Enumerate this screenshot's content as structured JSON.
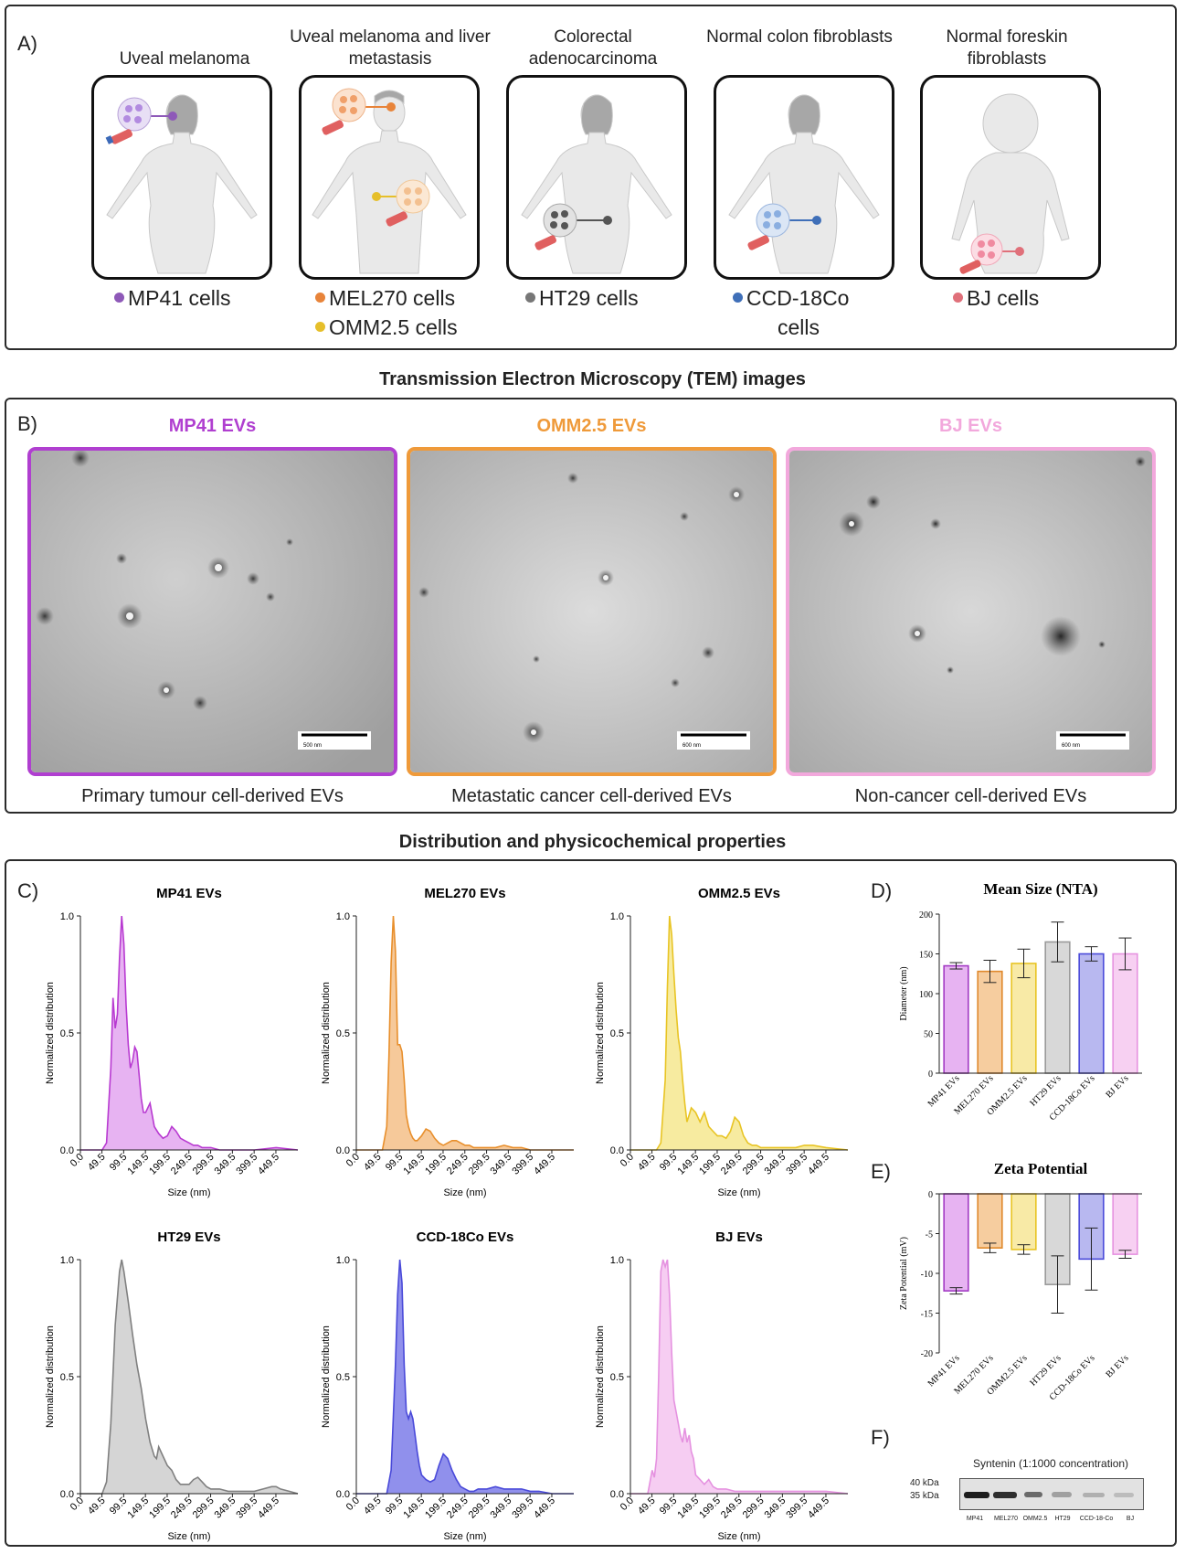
{
  "panel_a": {
    "letter": "A)",
    "groups": [
      {
        "title": "Uveal melanoma",
        "cells": [
          {
            "label": "MP41 cells",
            "color": "#8e59b8"
          }
        ]
      },
      {
        "title": "Uveal melanoma and liver metastasis",
        "cells": [
          {
            "label": "MEL270 cells",
            "color": "#e8843a"
          },
          {
            "label": "OMM2.5 cells",
            "color": "#e6bf2a"
          }
        ]
      },
      {
        "title": "Colorectal adenocarcinoma",
        "cells": [
          {
            "label": "HT29 cells",
            "color": "#777777"
          }
        ]
      },
      {
        "title": "Normal colon fibroblasts",
        "cells": [
          {
            "label": "CCD-18Co",
            "color": "#3f6fb8"
          },
          {
            "label": "cells",
            "color": ""
          }
        ]
      },
      {
        "title": "Normal foreskin fibroblasts",
        "cells": [
          {
            "label": "BJ cells",
            "color": "#e0707a"
          }
        ]
      }
    ]
  },
  "panel_b": {
    "heading": "Transmission Electron Microscopy (TEM) images",
    "letter": "B)",
    "images": [
      {
        "title": "MP41 EVs",
        "color": "#b03fd0",
        "caption": "Primary tumour cell-derived EVs",
        "scale_label": "500 nm"
      },
      {
        "title": "OMM2.5 EVs",
        "color": "#ef9a3a",
        "caption": "Metastatic cancer cell-derived EVs",
        "scale_label": "600 nm"
      },
      {
        "title": "BJ EVs",
        "color": "#f2a8dc",
        "caption": "Non-cancer cell-derived EVs",
        "scale_label": "600 nm"
      }
    ]
  },
  "panel_c_heading": "Distribution and physicochemical properties",
  "letters": {
    "c": "C)",
    "d": "D)",
    "e": "E)",
    "f": "F)"
  },
  "chart_data": [
    {
      "type": "area",
      "panel": "C",
      "title": "MP41 EVs",
      "color": "#b83ad1",
      "fill": "#e7b3f2",
      "xlabel": "Size (nm)",
      "ylabel": "Normalized distribution",
      "xlim": [
        0,
        500
      ],
      "ylim": [
        0,
        1.0
      ],
      "xticks": [
        "0.0",
        "49.5",
        "99.5",
        "149.5",
        "199.5",
        "249.5",
        "299.5",
        "349.5",
        "399.5",
        "449.5"
      ],
      "yticks": [
        "0.0",
        "0.5",
        "1.0"
      ],
      "x": [
        0,
        30,
        50,
        60,
        70,
        75,
        80,
        85,
        90,
        95,
        100,
        105,
        110,
        115,
        120,
        125,
        130,
        135,
        140,
        145,
        150,
        160,
        170,
        180,
        190,
        200,
        210,
        220,
        230,
        240,
        250,
        260,
        270,
        280,
        290,
        300,
        320,
        350,
        400,
        450,
        500
      ],
      "y": [
        0,
        0,
        0,
        0.03,
        0.35,
        0.65,
        0.52,
        0.58,
        0.82,
        1.0,
        0.88,
        0.62,
        0.45,
        0.35,
        0.38,
        0.44,
        0.42,
        0.32,
        0.22,
        0.16,
        0.16,
        0.2,
        0.1,
        0.07,
        0.05,
        0.06,
        0.1,
        0.08,
        0.05,
        0.04,
        0.03,
        0.02,
        0.02,
        0.01,
        0.01,
        0.01,
        0,
        0,
        0,
        0.01,
        0
      ]
    },
    {
      "type": "area",
      "panel": "C",
      "title": "MEL270 EVs",
      "color": "#e88f2c",
      "fill": "#f6c99a",
      "xlabel": "Size (nm)",
      "ylabel": "Normalized distribution",
      "xlim": [
        0,
        500
      ],
      "ylim": [
        0,
        1.0
      ],
      "xticks": [
        "0.0",
        "49.5",
        "99.5",
        "149.5",
        "199.5",
        "249.5",
        "299.5",
        "349.5",
        "399.5",
        "449.5"
      ],
      "yticks": [
        "0.0",
        "0.5",
        "1.0"
      ],
      "x": [
        0,
        60,
        70,
        75,
        80,
        85,
        90,
        95,
        100,
        105,
        110,
        115,
        120,
        125,
        130,
        135,
        140,
        150,
        160,
        170,
        180,
        190,
        200,
        210,
        220,
        230,
        240,
        250,
        260,
        270,
        280,
        290,
        300,
        320,
        340,
        360,
        380,
        400,
        450,
        500
      ],
      "y": [
        0,
        0,
        0.1,
        0.4,
        0.8,
        1.0,
        0.85,
        0.45,
        0.45,
        0.42,
        0.3,
        0.15,
        0.1,
        0.07,
        0.05,
        0.04,
        0.04,
        0.06,
        0.09,
        0.08,
        0.05,
        0.03,
        0.02,
        0.03,
        0.04,
        0.04,
        0.03,
        0.02,
        0.02,
        0.01,
        0.01,
        0.01,
        0.01,
        0.01,
        0.02,
        0.01,
        0.01,
        0,
        0,
        0
      ]
    },
    {
      "type": "area",
      "panel": "C",
      "title": "OMM2.5 EVs",
      "color": "#e8c424",
      "fill": "#f7eba0",
      "xlabel": "Size (nm)",
      "ylabel": "Normalized distribution",
      "xlim": [
        0,
        500
      ],
      "ylim": [
        0,
        1.0
      ],
      "xticks": [
        "0.0",
        "49.5",
        "99.5",
        "149.5",
        "199.5",
        "249.5",
        "299.5",
        "349.5",
        "399.5",
        "449.5"
      ],
      "yticks": [
        "0.0",
        "0.5",
        "1.0"
      ],
      "x": [
        0,
        60,
        70,
        80,
        85,
        90,
        95,
        100,
        105,
        110,
        115,
        120,
        125,
        130,
        135,
        140,
        150,
        160,
        170,
        180,
        190,
        200,
        210,
        220,
        230,
        240,
        250,
        260,
        270,
        280,
        290,
        300,
        320,
        350,
        380,
        400,
        420,
        450,
        500
      ],
      "y": [
        0,
        0,
        0.03,
        0.3,
        0.7,
        1.0,
        0.92,
        0.75,
        0.6,
        0.48,
        0.42,
        0.3,
        0.2,
        0.12,
        0.15,
        0.18,
        0.16,
        0.12,
        0.16,
        0.1,
        0.08,
        0.06,
        0.06,
        0.05,
        0.08,
        0.14,
        0.12,
        0.06,
        0.03,
        0.02,
        0.02,
        0.01,
        0.01,
        0.01,
        0.01,
        0.02,
        0.02,
        0.01,
        0
      ]
    },
    {
      "type": "area",
      "panel": "C",
      "title": "HT29 EVs",
      "color": "#808080",
      "fill": "#d5d5d5",
      "xlabel": "Size (nm)",
      "ylabel": "Normalized distribution",
      "xlim": [
        0,
        500
      ],
      "ylim": [
        0,
        1.0
      ],
      "xticks": [
        "0.0",
        "49.5",
        "99.5",
        "149.5",
        "199.5",
        "249.5",
        "299.5",
        "349.5",
        "399.5",
        "449.5"
      ],
      "yticks": [
        "0.0",
        "0.5",
        "1.0"
      ],
      "x": [
        0,
        40,
        50,
        60,
        70,
        80,
        90,
        95,
        100,
        110,
        120,
        130,
        140,
        150,
        160,
        170,
        175,
        180,
        190,
        200,
        210,
        220,
        230,
        240,
        250,
        260,
        270,
        280,
        290,
        300,
        320,
        340,
        360,
        380,
        400,
        420,
        440,
        450,
        460,
        480,
        500
      ],
      "y": [
        0,
        0,
        0,
        0.05,
        0.3,
        0.72,
        0.95,
        1.0,
        0.95,
        0.82,
        0.68,
        0.55,
        0.45,
        0.32,
        0.22,
        0.16,
        0.15,
        0.2,
        0.16,
        0.12,
        0.1,
        0.06,
        0.04,
        0.04,
        0.04,
        0.06,
        0.07,
        0.05,
        0.03,
        0.02,
        0.02,
        0.01,
        0.01,
        0.01,
        0.01,
        0.02,
        0.03,
        0.03,
        0.02,
        0.01,
        0
      ]
    },
    {
      "type": "area",
      "panel": "C",
      "title": "CCD-18Co EVs",
      "color": "#4a4ad9",
      "fill": "#9090ec",
      "xlabel": "Size (nm)",
      "ylabel": "Normalized distribution",
      "xlim": [
        0,
        500
      ],
      "ylim": [
        0,
        1.0
      ],
      "xticks": [
        "0.0",
        "49.5",
        "99.5",
        "149.5",
        "199.5",
        "249.5",
        "299.5",
        "349.5",
        "399.5",
        "449.5"
      ],
      "yticks": [
        "0.0",
        "0.5",
        "1.0"
      ],
      "x": [
        0,
        70,
        80,
        90,
        95,
        100,
        105,
        110,
        115,
        120,
        125,
        130,
        135,
        140,
        145,
        150,
        160,
        170,
        180,
        190,
        200,
        210,
        220,
        230,
        240,
        250,
        260,
        270,
        280,
        290,
        300,
        320,
        340,
        360,
        380,
        400,
        420,
        450,
        500
      ],
      "y": [
        0,
        0,
        0.1,
        0.55,
        0.85,
        1.0,
        0.9,
        0.55,
        0.35,
        0.32,
        0.35,
        0.32,
        0.25,
        0.18,
        0.12,
        0.08,
        0.06,
        0.05,
        0.06,
        0.12,
        0.17,
        0.15,
        0.1,
        0.06,
        0.03,
        0.02,
        0.01,
        0.01,
        0.02,
        0.02,
        0.02,
        0.03,
        0.02,
        0.02,
        0.02,
        0.01,
        0.01,
        0,
        0
      ]
    },
    {
      "type": "area",
      "panel": "C",
      "title": "BJ EVs",
      "color": "#e592e0",
      "fill": "#f6cdf2",
      "xlabel": "Size (nm)",
      "ylabel": "Normalized distribution",
      "xlim": [
        0,
        500
      ],
      "ylim": [
        0,
        1.0
      ],
      "xticks": [
        "0.0",
        "49.5",
        "99.5",
        "149.5",
        "199.5",
        "249.5",
        "299.5",
        "349.5",
        "399.5",
        "449.5"
      ],
      "yticks": [
        "0.0",
        "0.5",
        "1.0"
      ],
      "x": [
        0,
        40,
        45,
        50,
        55,
        60,
        65,
        70,
        75,
        80,
        85,
        90,
        95,
        100,
        105,
        110,
        115,
        120,
        125,
        130,
        135,
        140,
        145,
        150,
        160,
        170,
        180,
        190,
        200,
        220,
        240,
        260,
        300,
        350,
        400,
        450,
        500
      ],
      "y": [
        0,
        0,
        0.05,
        0.1,
        0.07,
        0.15,
        0.5,
        0.95,
        1.0,
        0.97,
        1.0,
        0.85,
        0.6,
        0.4,
        0.35,
        0.3,
        0.25,
        0.22,
        0.28,
        0.22,
        0.25,
        0.18,
        0.15,
        0.08,
        0.06,
        0.04,
        0.06,
        0.03,
        0.02,
        0.02,
        0.01,
        0.01,
        0.01,
        0.01,
        0.01,
        0.01,
        0
      ]
    },
    {
      "type": "bar",
      "panel": "D",
      "title": "Mean Size (NTA)",
      "ylabel": "Diameter (nm)",
      "ylim": [
        0,
        200
      ],
      "yticks": [
        "0",
        "50",
        "100",
        "150",
        "200"
      ],
      "categories": [
        "MP41 EVs",
        "MEL270 EVs",
        "OMM2.5 EVs",
        "HT29 EVs",
        "CCD-18Co EVs",
        "BJ EVs"
      ],
      "values": [
        135,
        128,
        138,
        165,
        150,
        150
      ],
      "errors": [
        4,
        14,
        18,
        25,
        9,
        20
      ],
      "colors": [
        "#a33bc4",
        "#e0892c",
        "#e8c424",
        "#9a9a9a",
        "#4a4ad9",
        "#e592e0"
      ],
      "fills": [
        "#e7b3f2",
        "#f6cd9f",
        "#f8eaa6",
        "#d8d8d8",
        "#b8b8f0",
        "#f7d0f2"
      ]
    },
    {
      "type": "bar",
      "panel": "E",
      "title": "Zeta Potential",
      "ylabel": "Zeta Potential (mV)",
      "ylim": [
        -20,
        0
      ],
      "yticks": [
        "0",
        "-5",
        "-10",
        "-15",
        "-20"
      ],
      "categories": [
        "MP41 EVs",
        "MEL270 EVs",
        "OMM2.5 EVs",
        "HT29 EVs",
        "CCD-18Co EVs",
        "BJ EVs"
      ],
      "values": [
        -12.2,
        -6.8,
        -7.0,
        -11.4,
        -8.2,
        -7.6
      ],
      "errors": [
        0.4,
        0.6,
        0.6,
        3.6,
        3.9,
        0.5
      ],
      "colors": [
        "#a33bc4",
        "#e0892c",
        "#e8c424",
        "#9a9a9a",
        "#4a4ad9",
        "#e592e0"
      ],
      "fills": [
        "#e7b3f2",
        "#f6cd9f",
        "#f8eaa6",
        "#d8d8d8",
        "#b8b8f0",
        "#f7d0f2"
      ]
    }
  ],
  "panel_f": {
    "title": "Syntenin (1:1000 concentration)",
    "markers": [
      "40 kDa",
      "35 kDa"
    ],
    "lanes": [
      "MP41",
      "MEL270",
      "OMM2.5",
      "HT29",
      "CCD-18-Co",
      "BJ"
    ]
  }
}
